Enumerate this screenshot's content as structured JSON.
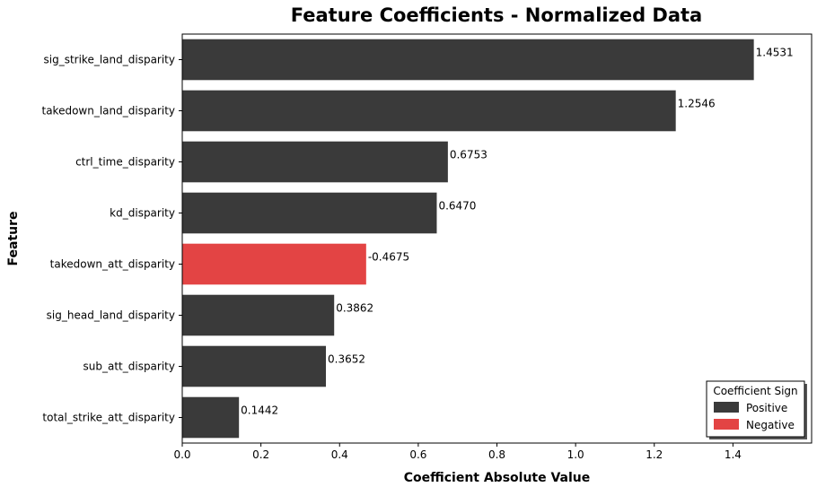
{
  "chart_data": {
    "type": "bar",
    "orientation": "horizontal",
    "title": "Feature Coefficients - Normalized Data",
    "xlabel": "Coefficient Absolute Value",
    "ylabel": "Feature",
    "xlim": [
      0,
      1.6
    ],
    "xticks": [
      0.0,
      0.2,
      0.4,
      0.6,
      0.8,
      1.0,
      1.2,
      1.4
    ],
    "xtick_labels": [
      "0.0",
      "0.2",
      "0.4",
      "0.6",
      "0.8",
      "1.0",
      "1.2",
      "1.4"
    ],
    "grid": false,
    "categories": [
      "sig_strike_land_disparity",
      "takedown_land_disparity",
      "ctrl_time_disparity",
      "kd_disparity",
      "takedown_att_disparity",
      "sig_head_land_disparity",
      "sub_att_disparity",
      "total_strike_att_disparity"
    ],
    "values": [
      1.4531,
      1.2546,
      0.6753,
      0.647,
      0.4675,
      0.3862,
      0.3652,
      0.1442
    ],
    "value_labels": [
      "1.4531",
      "1.2546",
      "0.6753",
      "0.6470",
      "-0.4675",
      "0.3862",
      "0.3652",
      "0.1442"
    ],
    "signs": [
      "Positive",
      "Positive",
      "Positive",
      "Positive",
      "Negative",
      "Positive",
      "Positive",
      "Positive"
    ],
    "colors": {
      "Positive": "#3a3a3a",
      "Negative": "#e34444"
    },
    "legend": {
      "title": "Coefficient Sign",
      "placement": "bottom-right",
      "entries": [
        "Positive",
        "Negative"
      ]
    }
  }
}
